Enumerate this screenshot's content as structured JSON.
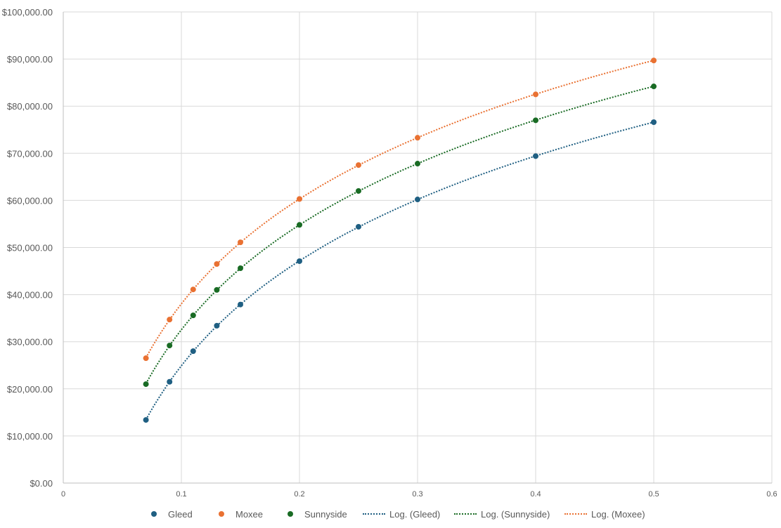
{
  "chart_data": {
    "type": "scatter",
    "title": "",
    "xlabel": "",
    "ylabel": "",
    "xlim": [
      0,
      0.6
    ],
    "ylim": [
      0,
      100000
    ],
    "x_ticks": [
      0,
      0.1,
      0.2,
      0.3,
      0.4,
      0.5,
      0.6
    ],
    "x_tick_labels": [
      "0",
      "0.1",
      "0.2",
      "0.3",
      "0.4",
      "0.5",
      "0.6"
    ],
    "y_ticks": [
      0,
      10000,
      20000,
      30000,
      40000,
      50000,
      60000,
      70000,
      80000,
      90000,
      100000
    ],
    "y_tick_labels": [
      "$0.00",
      "$10,000.00",
      "$20,000.00",
      "$30,000.00",
      "$40,000.00",
      "$50,000.00",
      "$60,000.00",
      "$70,000.00",
      "$80,000.00",
      "$90,000.00",
      "$100,000.00"
    ],
    "grid": true,
    "legend_position": "bottom",
    "x": [
      0.07,
      0.09,
      0.11,
      0.13,
      0.15,
      0.2,
      0.25,
      0.3,
      0.4,
      0.5
    ],
    "series": [
      {
        "name": "Gleed",
        "color": "#1F5F82",
        "values": [
          13400,
          21500,
          28000,
          33400,
          37900,
          47100,
          54400,
          60200,
          69400,
          76600
        ]
      },
      {
        "name": "Moxee",
        "color": "#E97132",
        "values": [
          26500,
          34700,
          41100,
          46500,
          51100,
          60300,
          67500,
          73300,
          82500,
          89700
        ]
      },
      {
        "name": "Sunnyside",
        "color": "#196B24",
        "values": [
          21000,
          29200,
          35600,
          41000,
          45600,
          54800,
          62000,
          67800,
          77000,
          84200
        ]
      }
    ],
    "trendlines": [
      {
        "name": "Log. (Gleed)",
        "type": "logarithmic",
        "series": "Gleed",
        "color": "#1F5F82",
        "style": "dotted"
      },
      {
        "name": "Log. (Sunnyside)",
        "type": "logarithmic",
        "series": "Sunnyside",
        "color": "#196B24",
        "style": "dotted"
      },
      {
        "name": "Log. (Moxee)",
        "type": "logarithmic",
        "series": "Moxee",
        "color": "#E97132",
        "style": "dotted"
      }
    ]
  },
  "legend": {
    "items": [
      {
        "label": "Gleed",
        "kind": "marker",
        "color": "#1F5F82"
      },
      {
        "label": "Moxee",
        "kind": "marker",
        "color": "#E97132"
      },
      {
        "label": "Sunnyside",
        "kind": "marker",
        "color": "#196B24"
      },
      {
        "label": "Log. (Gleed)",
        "kind": "line",
        "color": "#1F5F82"
      },
      {
        "label": "Log. (Sunnyside)",
        "kind": "line",
        "color": "#196B24"
      },
      {
        "label": "Log. (Moxee)",
        "kind": "line",
        "color": "#E97132"
      }
    ]
  }
}
